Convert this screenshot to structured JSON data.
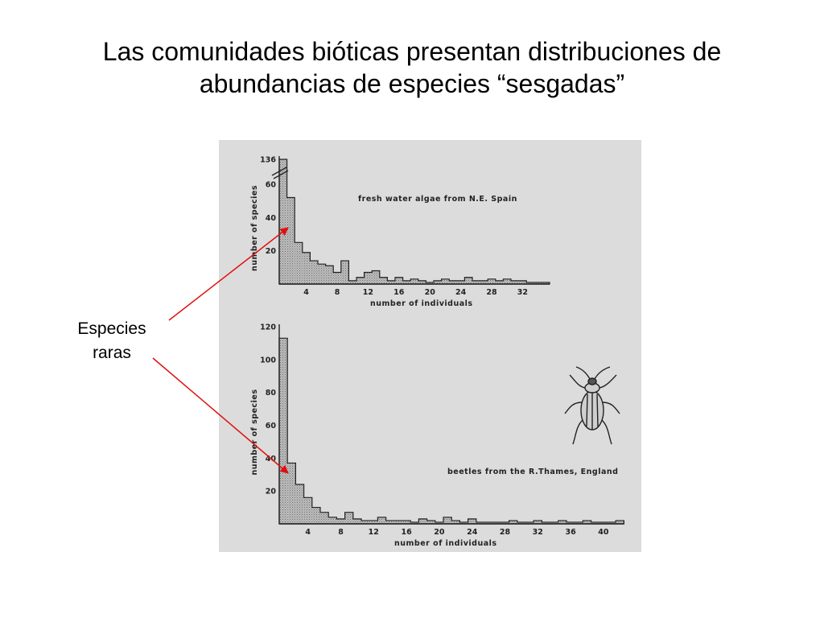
{
  "slide": {
    "title_line1": "Las comunidades bióticas presentan distribuciones de",
    "title_line2": "abundancias de especies “sesgadas”",
    "callout_line1": "Especies",
    "callout_line2": "raras"
  },
  "colors": {
    "panel_bg": "#dcdcdc",
    "bar_fill": "#b4b4b4",
    "ink": "#222222",
    "arrow": "#e01010"
  },
  "chart_data": [
    {
      "type": "bar",
      "label": "fresh water algae from N.E. Spain",
      "xlabel": "number of individuals",
      "ylabel": "number of species",
      "x_ticks": [
        4,
        8,
        12,
        16,
        20,
        24,
        28,
        32
      ],
      "y_ticks": [
        20,
        40,
        60,
        136
      ],
      "axis_break": true,
      "x": [
        1,
        2,
        3,
        4,
        5,
        6,
        7,
        8,
        9,
        10,
        11,
        12,
        13,
        14,
        15,
        16,
        17,
        18,
        19,
        20,
        21,
        22,
        23,
        24,
        25,
        26,
        27,
        28,
        29,
        30,
        31,
        32,
        33,
        34,
        35
      ],
      "values": [
        136,
        52,
        25,
        19,
        14,
        12,
        11,
        7,
        14,
        2,
        4,
        7,
        8,
        4,
        2,
        4,
        2,
        3,
        2,
        1,
        2,
        3,
        2,
        2,
        4,
        2,
        2,
        3,
        2,
        3,
        2,
        2,
        1,
        1,
        1
      ]
    },
    {
      "type": "bar",
      "label": "beetles from the R.Thames, England",
      "xlabel": "number of individuals",
      "ylabel": "number of species",
      "x_ticks": [
        4,
        8,
        12,
        16,
        20,
        24,
        28,
        32,
        36,
        40
      ],
      "y_ticks": [
        20,
        40,
        60,
        80,
        100,
        120
      ],
      "ylim": [
        0,
        120
      ],
      "x": [
        1,
        2,
        3,
        4,
        5,
        6,
        7,
        8,
        9,
        10,
        11,
        12,
        13,
        14,
        15,
        16,
        17,
        18,
        19,
        20,
        21,
        22,
        23,
        24,
        25,
        26,
        27,
        28,
        29,
        30,
        31,
        32,
        33,
        34,
        35,
        36,
        37,
        38,
        39,
        40,
        41,
        42
      ],
      "values": [
        113,
        37,
        24,
        16,
        10,
        7,
        4,
        3,
        7,
        3,
        2,
        2,
        4,
        2,
        2,
        2,
        1,
        3,
        2,
        1,
        4,
        2,
        1,
        3,
        1,
        1,
        1,
        1,
        2,
        1,
        1,
        2,
        1,
        1,
        2,
        1,
        1,
        2,
        1,
        1,
        1,
        2
      ]
    }
  ]
}
